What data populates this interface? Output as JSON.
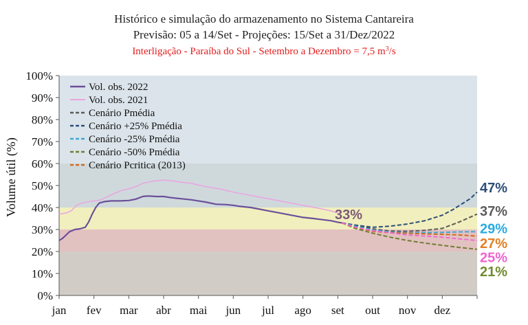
{
  "chart_data": {
    "type": "line",
    "title": "Histórico e simulação do armazenamento no Sistema Cantareira",
    "subtitle": "Previsão: 05 a 14/Set - Projeções: 15/Set a 31/Dez/2022",
    "note_prefix": "Interligação - Paraíba do Sul - Setembro a Dezembro = 7,5 m",
    "note_sup": "3",
    "note_suffix": "/s",
    "ylabel": "Volume útil (%)",
    "xlabel": "",
    "ylim": [
      0,
      100
    ],
    "yticks": [
      "0%",
      "10%",
      "20%",
      "30%",
      "40%",
      "50%",
      "60%",
      "70%",
      "80%",
      "90%",
      "100%"
    ],
    "months": [
      "jan",
      "fev",
      "mar",
      "abr",
      "mai",
      "jun",
      "jul",
      "ago",
      "set",
      "out",
      "nov",
      "dez"
    ],
    "grid": false,
    "legend_position": "top-left",
    "bands": [
      {
        "from": 0,
        "to": 20,
        "color": "#d1cdc6"
      },
      {
        "from": 20,
        "to": 30,
        "color": "#e2c1c1"
      },
      {
        "from": 30,
        "to": 40,
        "color": "#f1efbd"
      },
      {
        "from": 40,
        "to": 60,
        "color": "#cfd9dc"
      },
      {
        "from": 60,
        "to": 100,
        "color": "#dbe4ea"
      }
    ],
    "current_value_label": "33%",
    "current_value_color": "#7c5a78",
    "series": [
      {
        "name": "Vol. obs. 2022",
        "color": "#6b4f9a",
        "dash": false,
        "width": 2.2,
        "x": [
          0,
          0.1,
          0.2,
          0.3,
          0.45,
          0.6,
          0.75,
          0.85,
          0.95,
          1.05,
          1.15,
          1.3,
          1.5,
          1.75,
          2.0,
          2.2,
          2.4,
          2.5,
          2.6,
          2.8,
          3.0,
          3.2,
          3.5,
          3.8,
          4.0,
          4.2,
          4.5,
          4.8,
          5.0,
          5.2,
          5.5,
          6.0,
          6.5,
          7.0,
          7.3,
          7.5,
          7.8,
          8.0,
          8.12
        ],
        "y": [
          25,
          26,
          27.5,
          29,
          30,
          30.3,
          31,
          33.5,
          37,
          40,
          42,
          42.7,
          43,
          43,
          43.2,
          43.8,
          45,
          45.2,
          45.2,
          45,
          45,
          44.5,
          44,
          43.5,
          43,
          42.5,
          41.5,
          41.3,
          41,
          40.5,
          40,
          38.5,
          37,
          35.5,
          35,
          34.6,
          34,
          33.3,
          33
        ]
      },
      {
        "name": "Vol. obs. 2021",
        "color": "#e9a6e0",
        "dash": false,
        "width": 1.6,
        "x": [
          0,
          0.2,
          0.35,
          0.5,
          0.65,
          0.8,
          1.0,
          1.2,
          1.4,
          1.6,
          1.8,
          2.0,
          2.2,
          2.4,
          2.7,
          3.0,
          3.3,
          3.5,
          3.8,
          4.2,
          4.6,
          5.0,
          5.5,
          6.0,
          6.5,
          7.0,
          7.5,
          7.8,
          8.0
        ],
        "y": [
          37,
          37.5,
          38.5,
          41,
          42,
          42.5,
          43,
          43.5,
          45,
          46.5,
          47.8,
          48.5,
          49.5,
          51,
          52,
          52.5,
          52,
          51.5,
          51,
          49.5,
          48.5,
          47,
          45.5,
          44,
          42.5,
          41,
          39.5,
          38.5,
          37.5
        ]
      },
      {
        "name": "Cenário Pmédia",
        "color": "#5b5b5b",
        "dash": true,
        "width": 2,
        "x": [
          8.12,
          8.5,
          9.0,
          9.5,
          10.0,
          10.5,
          11.0,
          11.5,
          12.0
        ],
        "y": [
          33,
          31.8,
          30.3,
          29.3,
          29.2,
          29.6,
          30.5,
          33.5,
          37
        ]
      },
      {
        "name": "Cenário +25% Pmédia",
        "color": "#2c4e79",
        "dash": true,
        "width": 2,
        "x": [
          8.12,
          8.5,
          9.0,
          9.5,
          10.0,
          10.5,
          11.0,
          11.3,
          11.6,
          11.8,
          12.0
        ],
        "y": [
          33,
          32,
          31,
          31.5,
          32.5,
          34,
          36.5,
          39,
          42,
          44,
          47
        ]
      },
      {
        "name": "Cenário -25% Pmédia",
        "color": "#3fa7d6",
        "dash": true,
        "width": 2,
        "x": [
          8.12,
          8.5,
          9.0,
          9.5,
          10.0,
          10.5,
          11.0,
          11.5,
          12.0
        ],
        "y": [
          33,
          31.5,
          29.8,
          28.8,
          28.5,
          28.6,
          28.7,
          28.9,
          29
        ]
      },
      {
        "name": "Cenário -50% Pmédia",
        "color": "#6f7e32",
        "dash": true,
        "width": 2,
        "x": [
          8.12,
          8.5,
          9.0,
          9.5,
          10.0,
          10.5,
          11.0,
          11.5,
          12.0
        ],
        "y": [
          33,
          30.5,
          28.3,
          26.5,
          25,
          23.8,
          22.8,
          21.8,
          21
        ]
      },
      {
        "name": "Cenário Pcritica (2013)",
        "color": "#cf6b21",
        "dash": true,
        "width": 2,
        "x": [
          8.12,
          8.5,
          9.0,
          9.5,
          10.0,
          10.5,
          11.0,
          11.5,
          12.0
        ],
        "y": [
          33,
          31,
          29.2,
          28.5,
          28.3,
          28,
          27.8,
          27.5,
          27
        ]
      },
      {
        "name": "",
        "color": "#f064d0",
        "dash": true,
        "width": 1.8,
        "x": [
          8.12,
          8.5,
          9.0,
          9.5,
          10.0,
          10.5,
          11.0,
          11.5,
          12.0
        ],
        "y": [
          33,
          31,
          29.5,
          28.5,
          27.5,
          27,
          26.5,
          25.7,
          25
        ]
      }
    ],
    "end_labels": [
      {
        "text": "47%",
        "value": 47,
        "color": "#2c4e79",
        "label_y": 49
      },
      {
        "text": "37%",
        "value": 37,
        "color": "#5b5b5b",
        "label_y": 38.5
      },
      {
        "text": "29%",
        "value": 29,
        "color": "#29abe2",
        "label_y": 30.5
      },
      {
        "text": "27%",
        "value": 27,
        "color": "#e67e22",
        "label_y": 23.8
      },
      {
        "text": "25%",
        "value": 25,
        "color": "#f064d0",
        "label_y": 17.3
      },
      {
        "text": "21%",
        "value": 21,
        "color": "#6f8c2e",
        "label_y": 11
      }
    ]
  }
}
